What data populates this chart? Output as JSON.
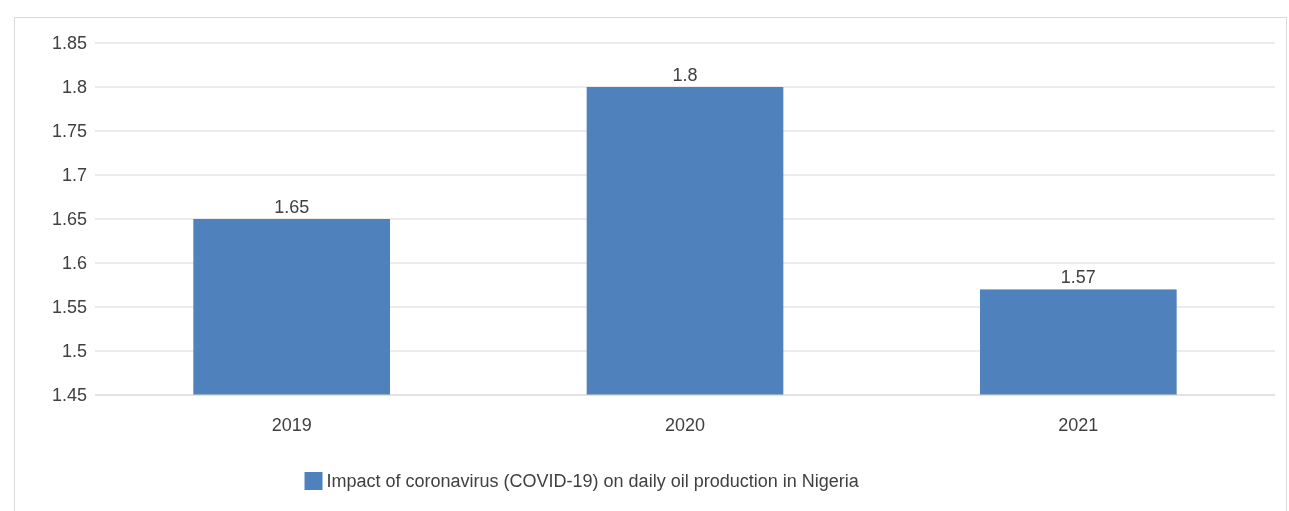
{
  "chart_data": {
    "type": "bar",
    "categories": [
      "2019",
      "2020",
      "2021"
    ],
    "series": [
      {
        "name": "Impact of coronavirus (COVID-19) on daily oil production in Nigeria",
        "color": "#4f81bd",
        "values": [
          1.65,
          1.8,
          1.57
        ]
      }
    ],
    "ylim": [
      1.45,
      1.85
    ],
    "yticks": [
      1.45,
      1.5,
      1.55,
      1.6,
      1.65,
      1.7,
      1.75,
      1.8,
      1.85
    ],
    "grid": "y",
    "data_labels": true,
    "legend": "bottom"
  }
}
